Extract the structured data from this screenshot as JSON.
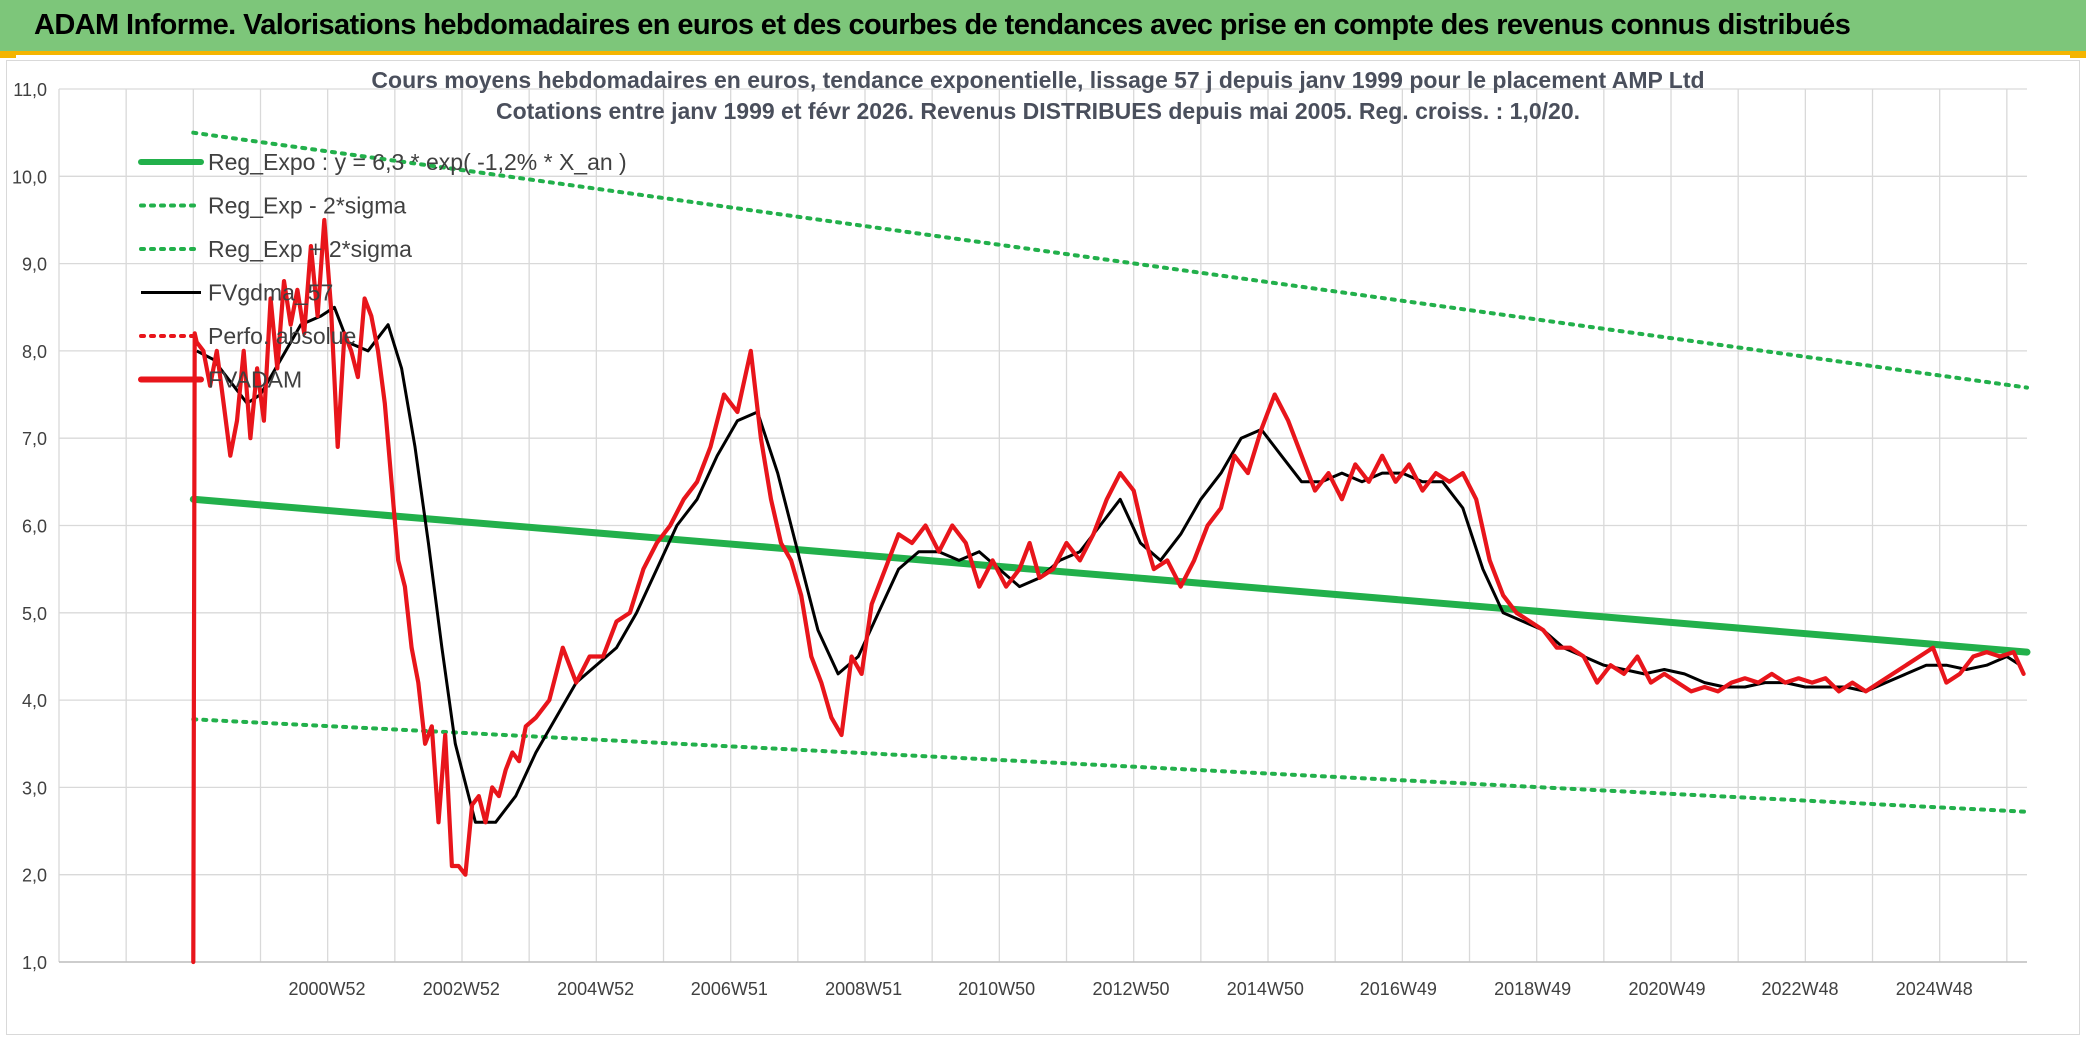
{
  "header": {
    "title": "ADAM Informe. Valorisations hebdomadaires en euros et des courbes de tendances avec prise en compte des revenus connus distribués"
  },
  "colors": {
    "banner": "#7dc67a",
    "accent": "#f4b400",
    "trend": "#22b04b",
    "price": "#e8151b",
    "smooth": "#000000",
    "grid": "#d9d9d9"
  },
  "chart_data": {
    "type": "line",
    "title": "Cours moyens hebdomadaires en euros, tendance exponentielle, lissage 57 j depuis janv 1999 pour le placement AMP Ltd",
    "subtitle": "Cotations entre janv 1999 et févr 2026. Revenus DISTRIBUES depuis mai 2005. Reg. croiss. : 1,0/20.",
    "xlabel": "",
    "ylabel": "",
    "ylim": [
      1.0,
      11.0
    ],
    "xlim": [
      1997.0,
      2026.3
    ],
    "grid": true,
    "legend_position": "top-left",
    "y_ticks": [
      "1,0",
      "2,0",
      "3,0",
      "4,0",
      "5,0",
      "6,0",
      "7,0",
      "8,0",
      "9,0",
      "10,0",
      "11,0"
    ],
    "x_tick_labels": [
      {
        "label": "2000W52",
        "x": 2000.99
      },
      {
        "label": "2002W52",
        "x": 2002.99
      },
      {
        "label": "2004W52",
        "x": 2004.99
      },
      {
        "label": "2006W51",
        "x": 2006.98
      },
      {
        "label": "2008W51",
        "x": 2008.98
      },
      {
        "label": "2010W50",
        "x": 2010.96
      },
      {
        "label": "2012W50",
        "x": 2012.96
      },
      {
        "label": "2014W50",
        "x": 2014.96
      },
      {
        "label": "2016W49",
        "x": 2016.94
      },
      {
        "label": "2018W49",
        "x": 2018.94
      },
      {
        "label": "2020W49",
        "x": 2020.94
      },
      {
        "label": "2022W48",
        "x": 2022.92
      },
      {
        "label": "2024W48",
        "x": 2024.92
      }
    ],
    "series": [
      {
        "name": "Reg_Expo : y = 6,3 * exp( -1,2% * X_an )",
        "style": "solid-thick",
        "color": "#22b04b",
        "x": [
          1999.0,
          2026.3
        ],
        "y": [
          6.3,
          4.55
        ]
      },
      {
        "name": "Reg_Exp - 2*sigma",
        "style": "dotted",
        "color": "#22b04b",
        "x": [
          1999.0,
          2026.3
        ],
        "y": [
          3.78,
          2.72
        ]
      },
      {
        "name": "Reg_Exp + 2*sigma",
        "style": "dotted",
        "color": "#22b04b",
        "x": [
          1999.0,
          2026.3
        ],
        "y": [
          10.5,
          7.58
        ]
      },
      {
        "name": "FVgdma_57",
        "style": "solid",
        "color": "#000000",
        "x": [
          1999.05,
          1999.3,
          1999.5,
          1999.8,
          2000.0,
          2000.3,
          2000.6,
          2000.9,
          2001.1,
          2001.3,
          2001.6,
          2001.9,
          2002.1,
          2002.3,
          2002.5,
          2002.7,
          2002.9,
          2003.2,
          2003.5,
          2003.8,
          2004.1,
          2004.4,
          2004.7,
          2005.0,
          2005.3,
          2005.6,
          2005.9,
          2006.2,
          2006.5,
          2006.8,
          2007.1,
          2007.4,
          2007.7,
          2008.0,
          2008.3,
          2008.6,
          2008.9,
          2009.2,
          2009.5,
          2009.8,
          2010.1,
          2010.4,
          2010.7,
          2011.0,
          2011.3,
          2011.6,
          2011.9,
          2012.2,
          2012.5,
          2012.8,
          2013.1,
          2013.4,
          2013.7,
          2014.0,
          2014.3,
          2014.6,
          2014.9,
          2015.2,
          2015.5,
          2015.8,
          2016.1,
          2016.4,
          2016.7,
          2017.0,
          2017.3,
          2017.6,
          2017.9,
          2018.2,
          2018.5,
          2018.8,
          2019.1,
          2019.4,
          2019.7,
          2020.0,
          2020.3,
          2020.6,
          2020.9,
          2021.2,
          2021.5,
          2021.8,
          2022.1,
          2022.4,
          2022.7,
          2023.0,
          2023.3,
          2023.6,
          2023.9,
          2024.2,
          2024.5,
          2024.8,
          2025.1,
          2025.4,
          2025.7,
          2026.0,
          2026.2
        ],
        "y": [
          8.0,
          7.9,
          7.7,
          7.4,
          7.5,
          7.9,
          8.3,
          8.4,
          8.5,
          8.1,
          8.0,
          8.3,
          7.8,
          6.9,
          5.8,
          4.6,
          3.5,
          2.6,
          2.6,
          2.9,
          3.4,
          3.8,
          4.2,
          4.4,
          4.6,
          5.0,
          5.5,
          6.0,
          6.3,
          6.8,
          7.2,
          7.3,
          6.6,
          5.7,
          4.8,
          4.3,
          4.5,
          5.0,
          5.5,
          5.7,
          5.7,
          5.6,
          5.7,
          5.5,
          5.3,
          5.4,
          5.6,
          5.7,
          6.0,
          6.3,
          5.8,
          5.6,
          5.9,
          6.3,
          6.6,
          7.0,
          7.1,
          6.8,
          6.5,
          6.5,
          6.6,
          6.5,
          6.6,
          6.6,
          6.5,
          6.5,
          6.2,
          5.5,
          5.0,
          4.9,
          4.8,
          4.6,
          4.5,
          4.4,
          4.35,
          4.3,
          4.35,
          4.3,
          4.2,
          4.15,
          4.15,
          4.2,
          4.2,
          4.15,
          4.15,
          4.15,
          4.1,
          4.2,
          4.3,
          4.4,
          4.4,
          4.35,
          4.4,
          4.5,
          4.4
        ]
      },
      {
        "name": "Perfo. absolue",
        "style": "dotted",
        "color": "#e8151b",
        "x": [],
        "y": []
      },
      {
        "name": "FVADAM",
        "style": "solid-thick",
        "color": "#e8151b",
        "x": [
          1999.0,
          1999.02,
          1999.05,
          1999.15,
          1999.25,
          1999.35,
          1999.45,
          1999.55,
          1999.65,
          1999.75,
          1999.85,
          1999.95,
          2000.05,
          2000.15,
          2000.25,
          2000.35,
          2000.45,
          2000.55,
          2000.65,
          2000.75,
          2000.85,
          2000.95,
          2001.05,
          2001.15,
          2001.25,
          2001.35,
          2001.45,
          2001.55,
          2001.65,
          2001.75,
          2001.85,
          2001.95,
          2002.05,
          2002.15,
          2002.25,
          2002.35,
          2002.45,
          2002.55,
          2002.65,
          2002.75,
          2002.85,
          2002.95,
          2003.05,
          2003.15,
          2003.25,
          2003.35,
          2003.45,
          2003.55,
          2003.65,
          2003.75,
          2003.85,
          2003.95,
          2004.1,
          2004.3,
          2004.5,
          2004.7,
          2004.9,
          2005.1,
          2005.3,
          2005.5,
          2005.7,
          2005.9,
          2006.1,
          2006.3,
          2006.5,
          2006.7,
          2006.9,
          2007.1,
          2007.3,
          2007.45,
          2007.6,
          2007.75,
          2007.9,
          2008.05,
          2008.2,
          2008.35,
          2008.5,
          2008.65,
          2008.8,
          2008.95,
          2009.1,
          2009.3,
          2009.5,
          2009.7,
          2009.9,
          2010.1,
          2010.3,
          2010.5,
          2010.7,
          2010.9,
          2011.1,
          2011.3,
          2011.45,
          2011.6,
          2011.8,
          2012.0,
          2012.2,
          2012.4,
          2012.6,
          2012.8,
          2013.0,
          2013.15,
          2013.3,
          2013.5,
          2013.7,
          2013.9,
          2014.1,
          2014.3,
          2014.5,
          2014.7,
          2014.9,
          2015.1,
          2015.3,
          2015.5,
          2015.7,
          2015.9,
          2016.1,
          2016.3,
          2016.5,
          2016.7,
          2016.9,
          2017.1,
          2017.3,
          2017.5,
          2017.7,
          2017.9,
          2018.1,
          2018.3,
          2018.5,
          2018.7,
          2018.9,
          2019.1,
          2019.3,
          2019.5,
          2019.7,
          2019.9,
          2020.1,
          2020.3,
          2020.5,
          2020.7,
          2020.9,
          2021.1,
          2021.3,
          2021.5,
          2021.7,
          2021.9,
          2022.1,
          2022.3,
          2022.5,
          2022.7,
          2022.9,
          2023.1,
          2023.3,
          2023.5,
          2023.7,
          2023.9,
          2024.1,
          2024.3,
          2024.5,
          2024.7,
          2024.9,
          2025.1,
          2025.3,
          2025.5,
          2025.7,
          2025.9,
          2026.1,
          2026.25
        ],
        "y": [
          1.0,
          8.2,
          8.1,
          8.0,
          7.6,
          8.0,
          7.4,
          6.8,
          7.2,
          8.0,
          7.0,
          7.8,
          7.2,
          8.6,
          7.8,
          8.8,
          8.3,
          8.7,
          8.2,
          9.2,
          8.4,
          9.5,
          8.5,
          6.9,
          8.2,
          8.0,
          7.7,
          8.6,
          8.4,
          8.0,
          7.4,
          6.5,
          5.6,
          5.3,
          4.6,
          4.2,
          3.5,
          3.7,
          2.6,
          3.6,
          2.1,
          2.1,
          2.0,
          2.8,
          2.9,
          2.6,
          3.0,
          2.9,
          3.2,
          3.4,
          3.3,
          3.7,
          3.8,
          4.0,
          4.6,
          4.2,
          4.5,
          4.5,
          4.9,
          5.0,
          5.5,
          5.8,
          6.0,
          6.3,
          6.5,
          6.9,
          7.5,
          7.3,
          8.0,
          7.0,
          6.3,
          5.8,
          5.6,
          5.2,
          4.5,
          4.2,
          3.8,
          3.6,
          4.5,
          4.3,
          5.1,
          5.5,
          5.9,
          5.8,
          6.0,
          5.7,
          6.0,
          5.8,
          5.3,
          5.6,
          5.3,
          5.5,
          5.8,
          5.4,
          5.5,
          5.8,
          5.6,
          5.9,
          6.3,
          6.6,
          6.4,
          5.9,
          5.5,
          5.6,
          5.3,
          5.6,
          6.0,
          6.2,
          6.8,
          6.6,
          7.1,
          7.5,
          7.2,
          6.8,
          6.4,
          6.6,
          6.3,
          6.7,
          6.5,
          6.8,
          6.5,
          6.7,
          6.4,
          6.6,
          6.5,
          6.6,
          6.3,
          5.6,
          5.2,
          5.0,
          4.9,
          4.8,
          4.6,
          4.6,
          4.5,
          4.2,
          4.4,
          4.3,
          4.5,
          4.2,
          4.3,
          4.2,
          4.1,
          4.15,
          4.1,
          4.2,
          4.25,
          4.2,
          4.3,
          4.2,
          4.25,
          4.2,
          4.25,
          4.1,
          4.2,
          4.1,
          4.2,
          4.3,
          4.4,
          4.5,
          4.6,
          4.2,
          4.3,
          4.5,
          4.55,
          4.5,
          4.55,
          4.3
        ]
      }
    ]
  }
}
